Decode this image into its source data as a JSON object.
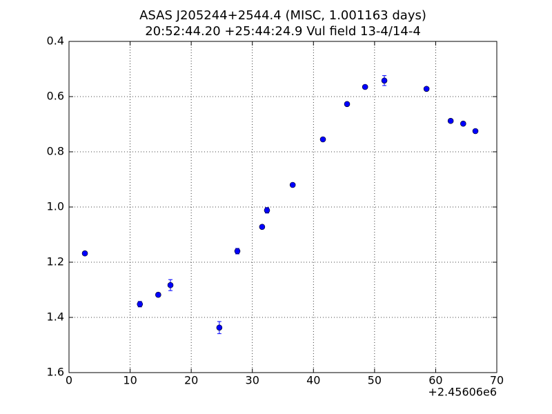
{
  "chart_data": {
    "type": "scatter",
    "title": "ASAS J205244+2544.4 (MISC, 1.001163 days)",
    "subtitle": "20:52:44.20 +25:44:24.9 Vul field 13-4/14-4",
    "x": [
      2.6,
      11.6,
      14.6,
      16.6,
      24.6,
      27.55,
      31.6,
      32.4,
      36.6,
      41.55,
      45.5,
      48.45,
      51.6,
      58.5,
      62.45,
      64.5,
      66.5
    ],
    "series": [
      {
        "color": "#0000ff",
        "values": [
          1.168,
          1.352,
          1.318,
          1.283,
          1.437,
          1.16,
          1.072,
          1.012,
          0.92,
          0.755,
          0.627,
          0.565,
          0.542,
          0.572,
          0.688,
          0.698,
          0.725
        ],
        "errors": [
          0.005,
          0.01,
          0.007,
          0.02,
          0.022,
          0.01,
          0.006,
          0.01,
          0.006,
          0.005,
          0.005,
          0.006,
          0.018,
          0.005,
          0.005,
          0.005,
          0.005
        ]
      }
    ],
    "xlim": [
      0,
      70
    ],
    "xticks": [
      0,
      10,
      20,
      30,
      40,
      50,
      60,
      70
    ],
    "x_offset_label": "+2.45606e6",
    "ylim": [
      0.4,
      1.6
    ],
    "invert_y": true,
    "yticks": [
      0.4,
      0.6,
      0.8,
      {
        "value": 1.0,
        "label": "1.0"
      },
      1.2,
      1.4,
      1.6
    ],
    "grid": true
  }
}
